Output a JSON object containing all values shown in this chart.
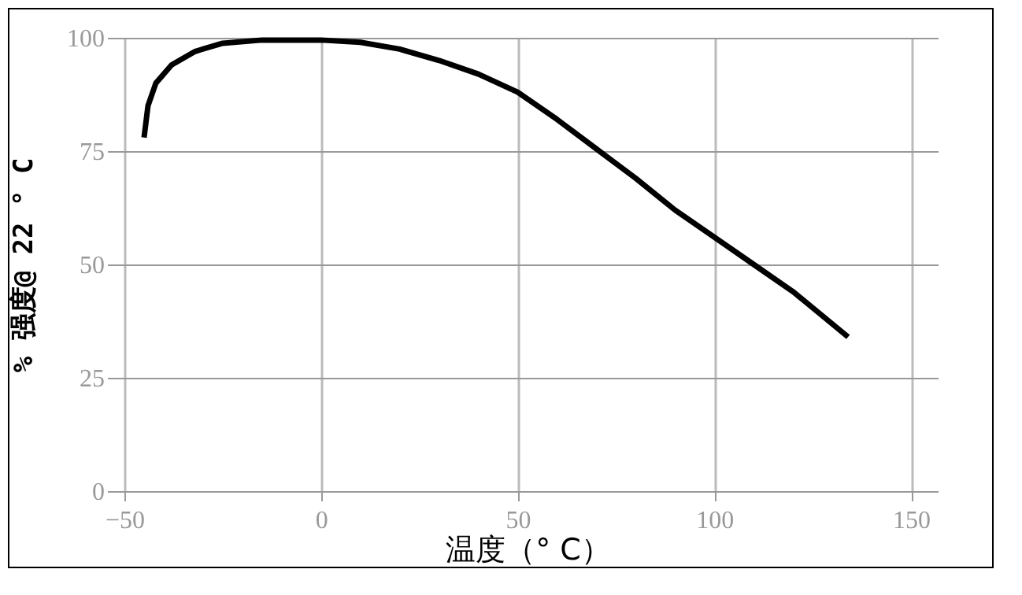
{
  "chart_data": {
    "type": "line",
    "xlabel": "温度（° C）",
    "ylabel": "% 强度@ 22 ° C",
    "x": [
      -45,
      -44,
      -42,
      -38,
      -32,
      -25,
      -15,
      0,
      10,
      20,
      30,
      40,
      50,
      60,
      70,
      80,
      90,
      100,
      110,
      120,
      134
    ],
    "series": [
      {
        "color": "#000000",
        "values": [
          78,
          85,
          90,
          94,
          97,
          98.8,
          99.5,
          99.5,
          99,
          97.5,
          95,
          92,
          88,
          82,
          75.5,
          69,
          62,
          56,
          50,
          44,
          34
        ]
      }
    ],
    "xlim": [
      -52,
      157
    ],
    "xticks": [
      -50,
      0,
      50,
      100,
      150
    ],
    "ylim": [
      0,
      100
    ],
    "yticks": [
      0,
      25,
      50,
      75,
      100
    ],
    "grid": true,
    "legend": false,
    "marker": "none",
    "line_style": "solid"
  }
}
